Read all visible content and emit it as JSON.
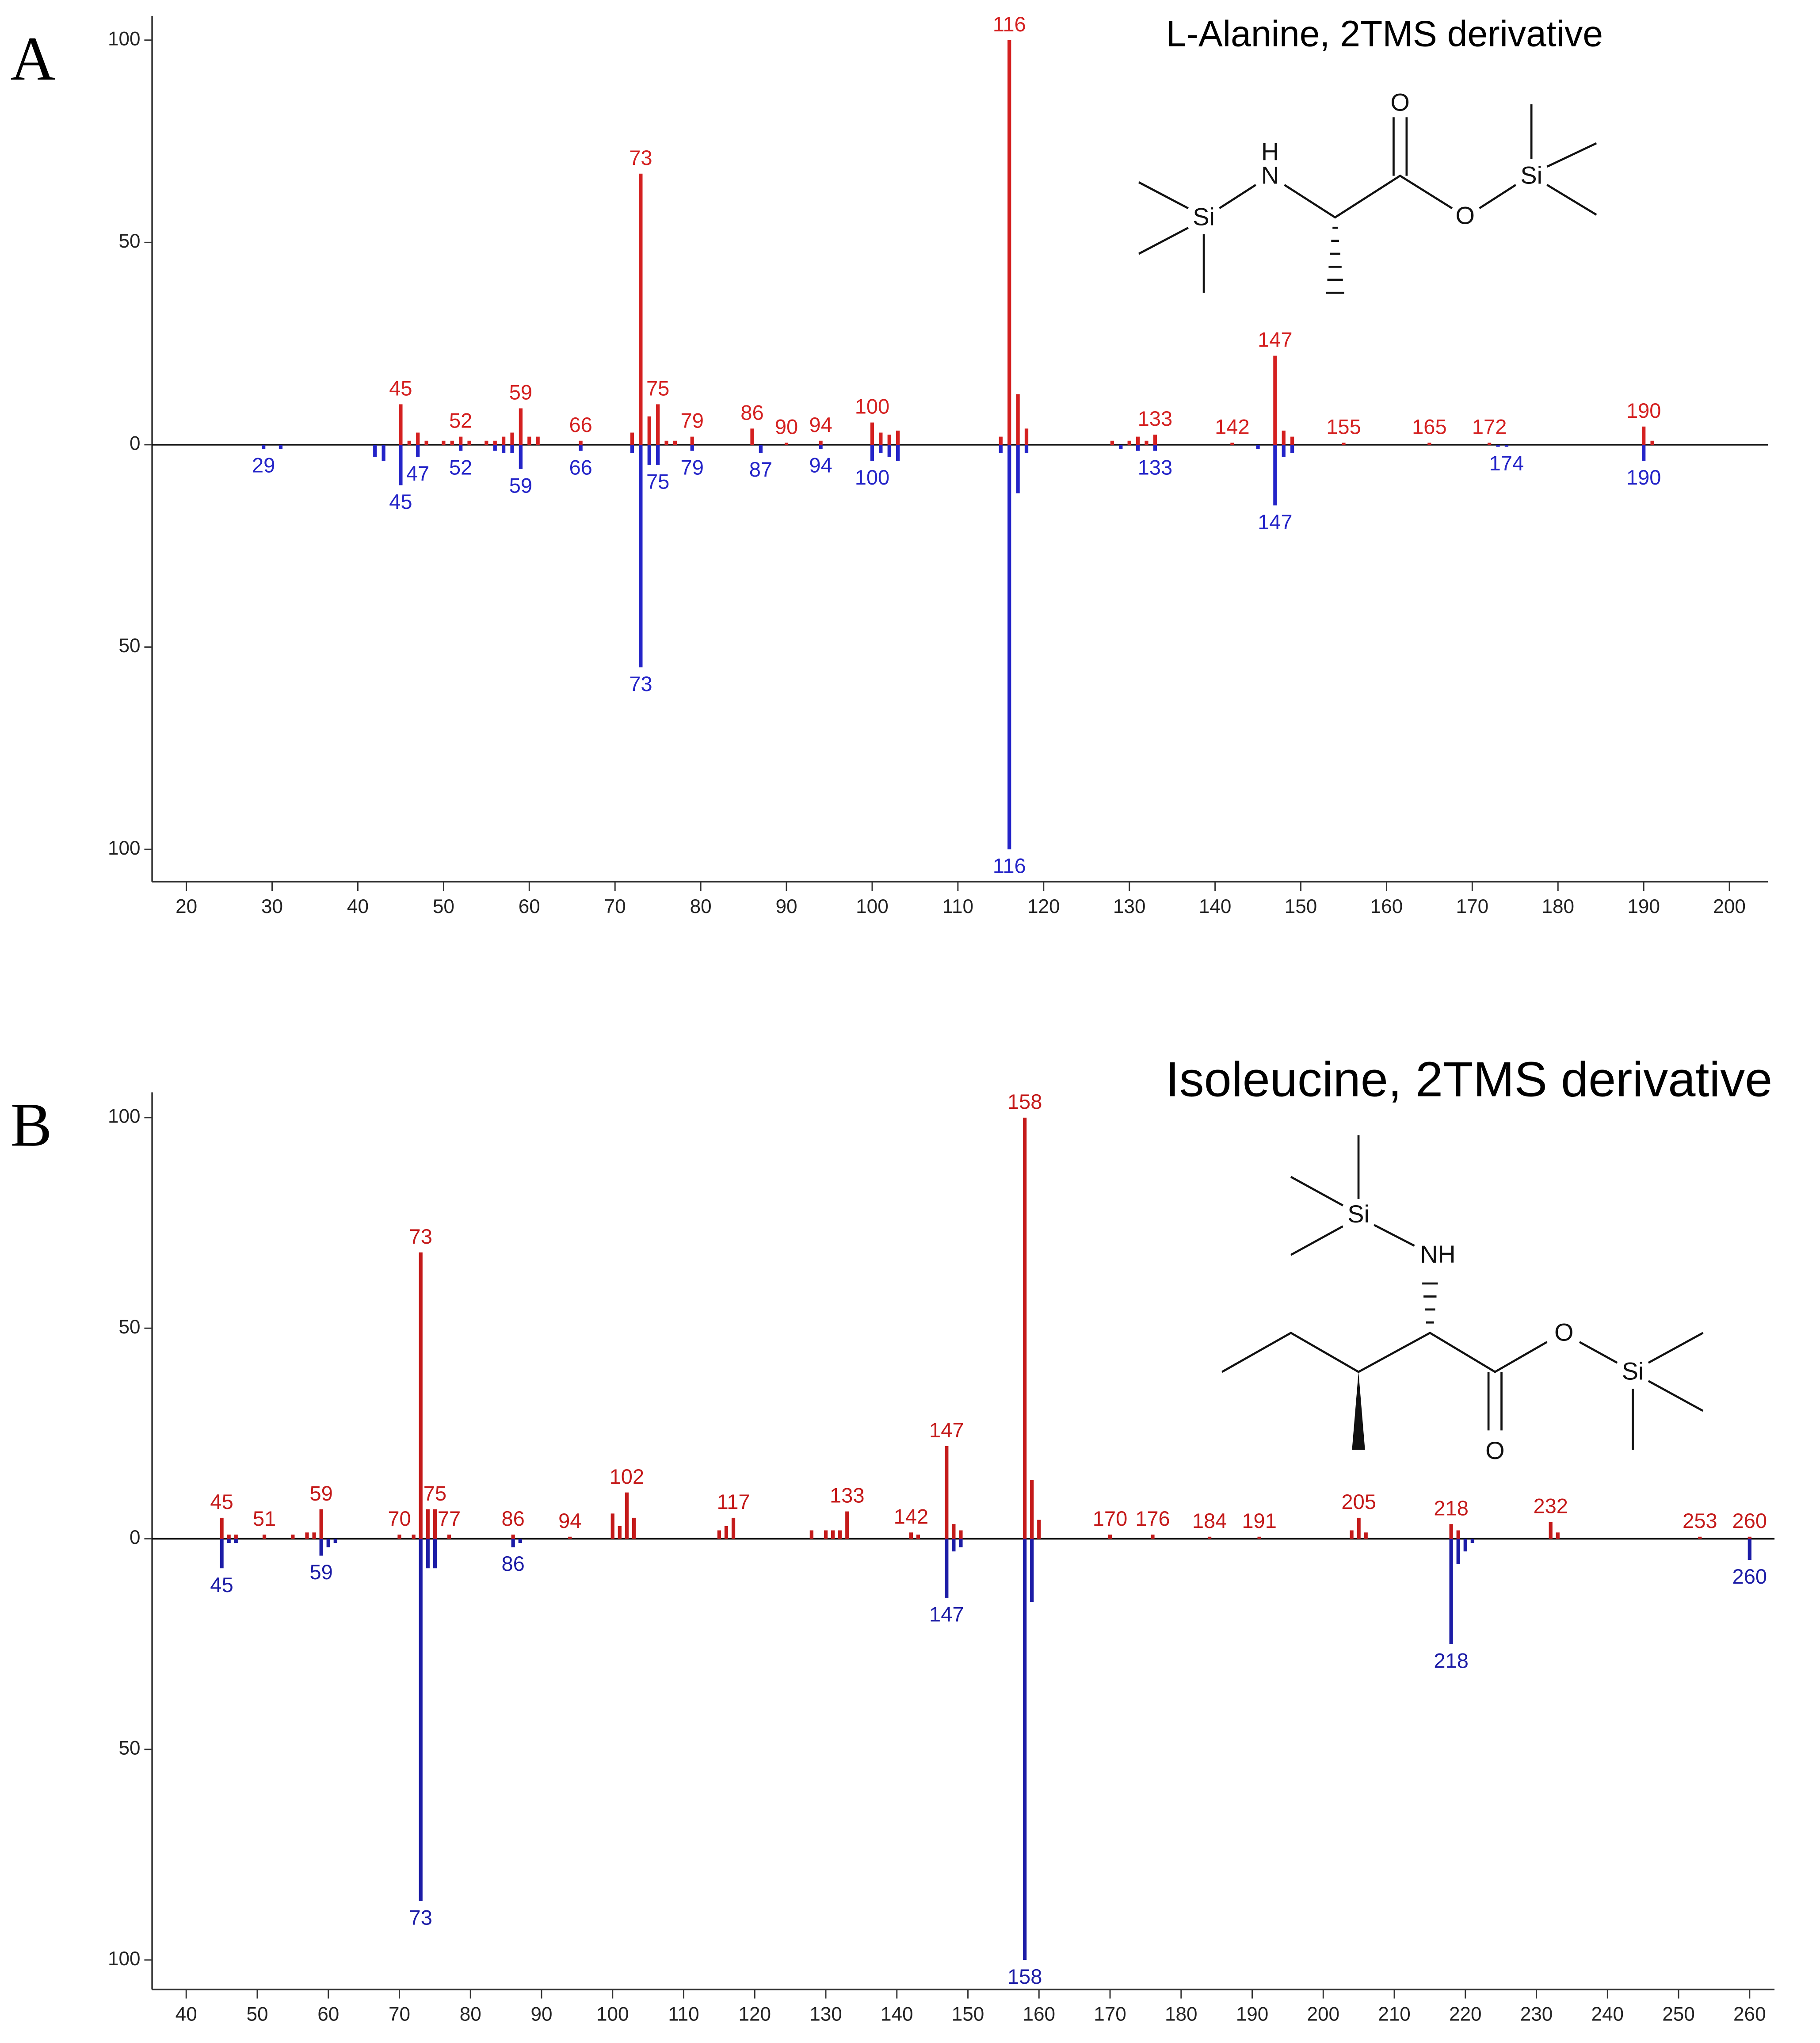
{
  "chart_data": [
    {
      "type": "bar",
      "panel_label": "A",
      "title": "L-Alanine, 2TMS derivative",
      "structure_labels": [
        "Si",
        "N",
        "H",
        "O",
        "O",
        "Si"
      ],
      "xlim": [
        16,
        204.5
      ],
      "xticks": [
        20,
        30,
        40,
        50,
        60,
        70,
        80,
        90,
        100,
        110,
        120,
        130,
        140,
        150,
        160,
        170,
        180,
        190,
        200
      ],
      "ylim": [
        -108,
        106
      ],
      "yticks": [
        {
          "value": -100,
          "label": "100"
        },
        {
          "value": -50,
          "label": "50"
        },
        0,
        50,
        100
      ],
      "series": [
        {
          "color": "#d42020",
          "x": [
            45,
            52,
            59,
            66,
            73,
            75,
            79,
            86,
            90,
            94,
            100,
            116,
            133,
            142,
            147,
            155,
            165,
            172,
            190
          ],
          "values": [
            10,
            2,
            9,
            1,
            67,
            10,
            2,
            4,
            0.5,
            1,
            5.5,
            100,
            2.5,
            0.5,
            22,
            0.5,
            0.5,
            0.5,
            4.5
          ]
        },
        {
          "color": "#2424c8",
          "x": [
            29,
            45,
            47,
            52,
            59,
            66,
            73,
            75,
            79,
            87,
            94,
            100,
            116,
            133,
            147,
            174,
            190
          ],
          "values": [
            -1,
            -10,
            -3,
            -1.5,
            -6,
            -1.5,
            -55,
            -5,
            -1.5,
            -2,
            -1,
            -4,
            -100,
            -1.5,
            -15,
            -0.5,
            -4
          ]
        }
      ],
      "minor_peaks": [
        {
          "color": "#d42020",
          "x": [
            46,
            47,
            48,
            50,
            51,
            53,
            55,
            56,
            57,
            58,
            60,
            61,
            72,
            74,
            76,
            77,
            101,
            102,
            103,
            115,
            117,
            118,
            128,
            130,
            131,
            132,
            148,
            149,
            191
          ],
          "values": [
            1,
            3,
            1,
            1,
            1,
            1,
            1,
            1,
            2,
            3,
            2,
            2,
            3,
            7,
            1,
            1,
            3,
            2.5,
            3.5,
            2,
            12.5,
            4,
            1,
            1,
            2,
            1,
            3.5,
            2,
            1
          ]
        },
        {
          "color": "#2424c8",
          "x": [
            31,
            42,
            43,
            56,
            57,
            58,
            72,
            74,
            101,
            102,
            103,
            115,
            117,
            118,
            129,
            131,
            145,
            148,
            149,
            173
          ],
          "values": [
            -1,
            -3,
            -4,
            -1.5,
            -2,
            -2,
            -2,
            -5,
            -2,
            -3,
            -4,
            -2,
            -12,
            -2,
            -1,
            -1.5,
            -1,
            -3,
            -2,
            -0.5
          ]
        }
      ]
    },
    {
      "type": "bar",
      "panel_label": "B",
      "title": "Isoleucine, 2TMS derivative",
      "structure_labels": [
        "Si",
        "NH",
        "O",
        "O",
        "Si"
      ],
      "xlim": [
        35.2,
        263.5
      ],
      "xticks": [
        40,
        50,
        60,
        70,
        80,
        90,
        100,
        110,
        120,
        130,
        140,
        150,
        160,
        170,
        180,
        190,
        200,
        210,
        220,
        230,
        240,
        250,
        260
      ],
      "ylim": [
        -107,
        106
      ],
      "yticks": [
        {
          "value": -100,
          "label": "100"
        },
        {
          "value": -50,
          "label": "50"
        },
        0,
        50,
        100
      ],
      "series": [
        {
          "color": "#c41a1a",
          "x": [
            45,
            51,
            59,
            70,
            73,
            75,
            77,
            86,
            94,
            102,
            117,
            133,
            142,
            147,
            158,
            170,
            176,
            184,
            191,
            205,
            218,
            232,
            253,
            260
          ],
          "values": [
            5,
            1,
            7,
            1,
            68,
            7,
            1,
            1,
            0.5,
            11,
            5,
            6.5,
            1.5,
            22,
            100,
            1,
            1,
            0.5,
            0.5,
            5,
            3.5,
            4,
            0.5,
            0.5
          ]
        },
        {
          "color": "#1c1ca6",
          "x": [
            45,
            59,
            73,
            86,
            147,
            158,
            218,
            260
          ],
          "values": [
            -7,
            -4,
            -86,
            -2,
            -14,
            -100,
            -25,
            -5
          ]
        }
      ],
      "minor_peaks": [
        {
          "color": "#c41a1a",
          "x": [
            46,
            47,
            55,
            57,
            58,
            72,
            74,
            100,
            101,
            103,
            115,
            116,
            128,
            130,
            131,
            132,
            143,
            148,
            149,
            159,
            160,
            204,
            206,
            219,
            233
          ],
          "values": [
            1,
            1,
            1,
            1.5,
            1.5,
            1,
            7,
            6,
            3,
            5,
            2,
            3,
            2,
            2,
            2,
            2,
            1,
            3.5,
            2,
            14,
            4.5,
            2,
            1.5,
            2,
            1.5
          ]
        },
        {
          "color": "#1c1ca6",
          "x": [
            46,
            47,
            60,
            61,
            74,
            75,
            87,
            148,
            149,
            159,
            219,
            220,
            221
          ],
          "values": [
            -1,
            -1,
            -2,
            -1,
            -7,
            -7,
            -1,
            -3,
            -2,
            -15,
            -6,
            -3,
            -1
          ]
        }
      ]
    }
  ]
}
